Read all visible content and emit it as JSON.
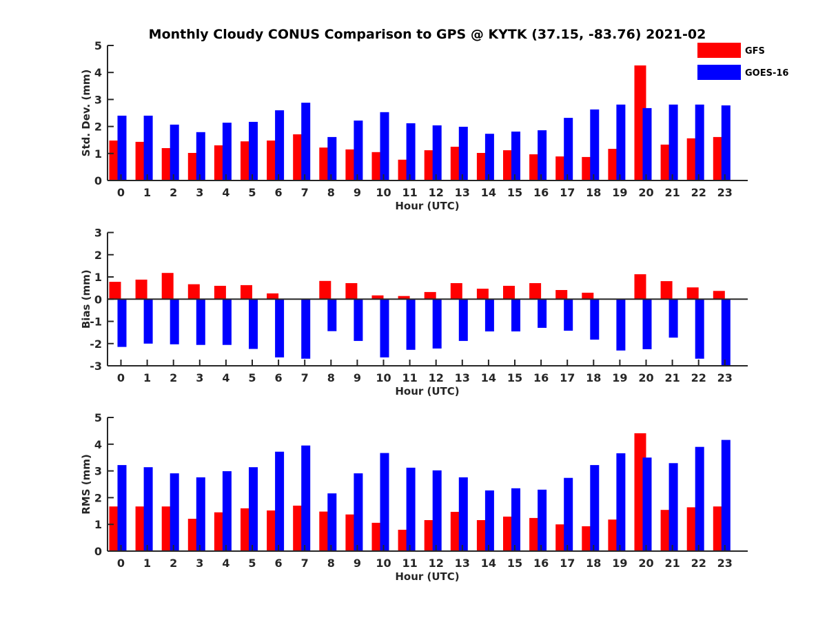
{
  "chart_data": [
    {
      "type": "bar",
      "title": "Monthly Cloudy CONUS Comparison to GPS @ KYTK (37.15, -83.76) 2021-02",
      "xlabel": "Hour (UTC)",
      "ylabel": "Std. Dev. (mm)",
      "ylim": [
        0,
        5
      ],
      "yticks": [
        0,
        1,
        2,
        3,
        4,
        5
      ],
      "categories": [
        "0",
        "1",
        "2",
        "3",
        "4",
        "5",
        "6",
        "7",
        "8",
        "9",
        "10",
        "11",
        "12",
        "13",
        "14",
        "15",
        "16",
        "17",
        "18",
        "19",
        "20",
        "21",
        "22",
        "23"
      ],
      "legend": {
        "position": "top-right",
        "entries": [
          "GFS",
          "GOES-16"
        ]
      },
      "series": [
        {
          "name": "GFS",
          "color": "#ff0000",
          "values": [
            1.48,
            1.43,
            1.2,
            1.02,
            1.3,
            1.45,
            1.48,
            1.71,
            1.22,
            1.15,
            1.05,
            0.77,
            1.12,
            1.25,
            1.02,
            1.12,
            0.97,
            0.89,
            0.87,
            1.17,
            4.26,
            1.33,
            1.56,
            1.61
          ]
        },
        {
          "name": "GOES-16",
          "color": "#0000ff",
          "values": [
            2.4,
            2.4,
            2.07,
            1.79,
            2.14,
            2.17,
            2.6,
            2.88,
            1.61,
            2.22,
            2.53,
            2.12,
            2.04,
            1.99,
            1.73,
            1.81,
            1.86,
            2.32,
            2.63,
            2.81,
            2.68,
            2.81,
            2.81,
            2.78
          ]
        }
      ]
    },
    {
      "type": "bar",
      "title": "",
      "xlabel": "Hour (UTC)",
      "ylabel": "Bias (mm)",
      "ylim": [
        -3,
        3
      ],
      "yticks": [
        -3,
        -2,
        -1,
        0,
        1,
        2,
        3
      ],
      "categories": [
        "0",
        "1",
        "2",
        "3",
        "4",
        "5",
        "6",
        "7",
        "8",
        "9",
        "10",
        "11",
        "12",
        "13",
        "14",
        "15",
        "16",
        "17",
        "18",
        "19",
        "20",
        "21",
        "22",
        "23"
      ],
      "series": [
        {
          "name": "GFS",
          "color": "#ff0000",
          "values": [
            0.78,
            0.88,
            1.18,
            0.67,
            0.6,
            0.63,
            0.26,
            0.0,
            0.82,
            0.72,
            0.17,
            0.14,
            0.32,
            0.72,
            0.47,
            0.6,
            0.72,
            0.41,
            0.29,
            -0.02,
            1.12,
            0.81,
            0.53,
            0.37
          ]
        },
        {
          "name": "GOES-16",
          "color": "#0000ff",
          "values": [
            -2.15,
            -2.0,
            -2.03,
            -2.06,
            -2.06,
            -2.24,
            -2.62,
            -2.68,
            -1.44,
            -1.88,
            -2.62,
            -2.28,
            -2.22,
            -1.88,
            -1.45,
            -1.45,
            -1.29,
            -1.42,
            -1.82,
            -2.31,
            -2.25,
            -1.73,
            -2.68,
            -3.0
          ]
        }
      ]
    },
    {
      "type": "bar",
      "title": "",
      "xlabel": "Hour (UTC)",
      "ylabel": "RMS (mm)",
      "ylim": [
        0,
        5
      ],
      "yticks": [
        0,
        1,
        2,
        3,
        4,
        5
      ],
      "categories": [
        "0",
        "1",
        "2",
        "3",
        "4",
        "5",
        "6",
        "7",
        "8",
        "9",
        "10",
        "11",
        "12",
        "13",
        "14",
        "15",
        "16",
        "17",
        "18",
        "19",
        "20",
        "21",
        "22",
        "23"
      ],
      "series": [
        {
          "name": "GFS",
          "color": "#ff0000",
          "values": [
            1.67,
            1.67,
            1.67,
            1.21,
            1.45,
            1.6,
            1.52,
            1.7,
            1.48,
            1.37,
            1.06,
            0.8,
            1.16,
            1.47,
            1.16,
            1.29,
            1.24,
            1.0,
            0.93,
            1.18,
            4.41,
            1.54,
            1.64,
            1.67
          ]
        },
        {
          "name": "GOES-16",
          "color": "#0000ff",
          "values": [
            3.22,
            3.14,
            2.91,
            2.76,
            2.99,
            3.14,
            3.72,
            3.95,
            2.16,
            2.91,
            3.67,
            3.12,
            3.02,
            2.76,
            2.27,
            2.35,
            2.3,
            2.74,
            3.22,
            3.66,
            3.5,
            3.29,
            3.9,
            4.16
          ]
        }
      ]
    }
  ]
}
